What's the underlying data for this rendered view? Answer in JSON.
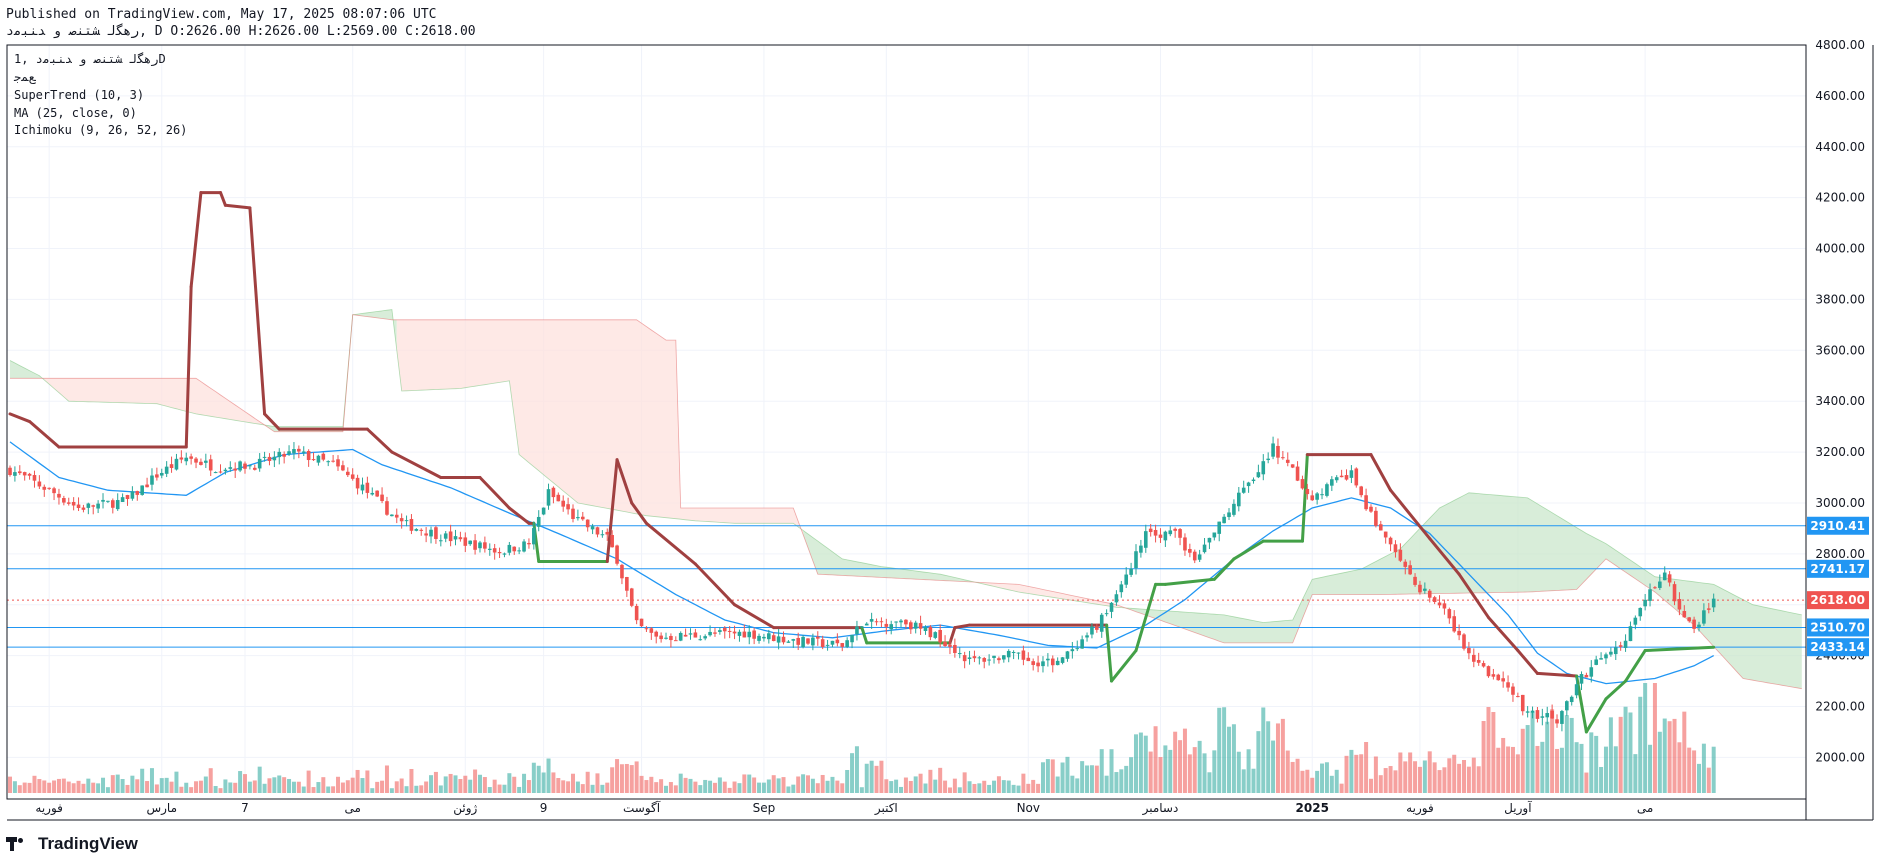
{
  "header": {
    "line1": "Published on TradingView.com, May 17, 2025 08:07:06 UTC",
    "line2": "ﺭﻫﮕﻟ ﺸﺘﻨﺻ ﻭ ﺪﻨﺒﻣﺩ, D O:2626.00 H:2626.00 L:2569.00 C:2618.00"
  },
  "legend": {
    "symbol": "ﺭﻫﮕﻟ ﺸﺘﻨﺻ ﻭ ﺪﻨﺒﻣﺩ ,1D",
    "sub": "ﻊﻤﺟ",
    "supertrend": "SuperTrend (10, 3)",
    "ma": "MA (25, close, 0)",
    "ichimoku": "Ichimoku (9, 26, 52, 26)"
  },
  "footer": {
    "brand": "TradingView"
  },
  "colors": {
    "up": "#26a69a",
    "down": "#ef5350",
    "st_up": "#43a047",
    "st_down": "#a04040",
    "ma": "#2196f3",
    "hline": "#2196f3",
    "cloud_up": "#c8e6c9",
    "cloud_down": "#fde0dc"
  },
  "chart_data": {
    "type": "candlestick",
    "y_range": [
      1860,
      4800
    ],
    "y_ticks": [
      2000,
      2200,
      2400,
      2600,
      2800,
      3000,
      3200,
      3400,
      3600,
      3800,
      4000,
      4200,
      4400,
      4600,
      4800
    ],
    "y_tick_labels": [
      "2000.00",
      "2200.00",
      "2400.00",
      "2600.00",
      "2800.00",
      "3000.00",
      "3200.00",
      "3400.00",
      "3600.00",
      "3800.00",
      "4000.00",
      "4200.00",
      "4400.00",
      "4600.00",
      "4800.00"
    ],
    "x_labels": [
      {
        "i": 8,
        "label": "ﻓﻮرﯾﻪ"
      },
      {
        "i": 31,
        "label": "ﻣﺎرس"
      },
      {
        "i": 48,
        "label": "7"
      },
      {
        "i": 70,
        "label": "ﻣﯽ"
      },
      {
        "i": 93,
        "label": "ژوﺋﻦ"
      },
      {
        "i": 109,
        "label": "9"
      },
      {
        "i": 129,
        "label": "آﮔﻮﺳﺖ"
      },
      {
        "i": 154,
        "label": "Sep"
      },
      {
        "i": 179,
        "label": "اﮐﺘﺒﺮ"
      },
      {
        "i": 208,
        "label": "Nov"
      },
      {
        "i": 235,
        "label": "دﺳﺎﻣﺒﺮ"
      },
      {
        "i": 266,
        "label": "2025"
      },
      {
        "i": 288,
        "label": "ﻓﻮرﯾﻪ"
      },
      {
        "i": 308,
        "label": "آورﯾﻞ"
      },
      {
        "i": 334,
        "label": "ﻣﯽ"
      }
    ],
    "price_levels": [
      {
        "value": 2910.41,
        "label": "2910.41"
      },
      {
        "value": 2741.17,
        "label": "2741.17"
      },
      {
        "value": 2510.7,
        "label": "2510.70"
      },
      {
        "value": 2433.14,
        "label": "2433.14"
      }
    ],
    "last_price": {
      "value": 2618.0,
      "label": "2618.00"
    },
    "close_keypoints": [
      [
        0,
        3130
      ],
      [
        8,
        3050
      ],
      [
        14,
        2980
      ],
      [
        24,
        3010
      ],
      [
        30,
        3110
      ],
      [
        36,
        3180
      ],
      [
        42,
        3140
      ],
      [
        50,
        3150
      ],
      [
        58,
        3200
      ],
      [
        66,
        3150
      ],
      [
        72,
        3060
      ],
      [
        80,
        2920
      ],
      [
        90,
        2860
      ],
      [
        100,
        2810
      ],
      [
        106,
        2840
      ],
      [
        110,
        3040
      ],
      [
        116,
        2930
      ],
      [
        122,
        2860
      ],
      [
        124,
        2780
      ],
      [
        128,
        2520
      ],
      [
        132,
        2470
      ],
      [
        140,
        2480
      ],
      [
        150,
        2490
      ],
      [
        160,
        2460
      ],
      [
        170,
        2440
      ],
      [
        174,
        2520
      ],
      [
        182,
        2540
      ],
      [
        190,
        2470
      ],
      [
        196,
        2380
      ],
      [
        204,
        2400
      ],
      [
        212,
        2370
      ],
      [
        218,
        2420
      ],
      [
        224,
        2570
      ],
      [
        232,
        2870
      ],
      [
        238,
        2890
      ],
      [
        242,
        2760
      ],
      [
        248,
        2950
      ],
      [
        254,
        3100
      ],
      [
        258,
        3220
      ],
      [
        262,
        3120
      ],
      [
        266,
        3020
      ],
      [
        270,
        3080
      ],
      [
        274,
        3110
      ],
      [
        278,
        2950
      ],
      [
        282,
        2830
      ],
      [
        286,
        2700
      ],
      [
        292,
        2600
      ],
      [
        298,
        2400
      ],
      [
        304,
        2300
      ],
      [
        310,
        2180
      ],
      [
        316,
        2150
      ],
      [
        320,
        2290
      ],
      [
        326,
        2410
      ],
      [
        330,
        2460
      ],
      [
        334,
        2620
      ],
      [
        338,
        2740
      ],
      [
        341,
        2580
      ],
      [
        344,
        2500
      ],
      [
        346,
        2560
      ],
      [
        348,
        2618
      ]
    ],
    "supertrend_keypoints": [
      [
        0,
        3350
      ],
      [
        4,
        3320
      ],
      [
        10,
        3220
      ],
      [
        36,
        3220
      ],
      [
        37,
        3850
      ],
      [
        39,
        4220
      ],
      [
        43,
        4220
      ],
      [
        44,
        4170
      ],
      [
        49,
        4160
      ],
      [
        52,
        3350
      ],
      [
        55,
        3290
      ],
      [
        73,
        3290
      ],
      [
        78,
        3200
      ],
      [
        88,
        3100
      ],
      [
        96,
        3100
      ],
      [
        102,
        2980
      ],
      [
        106,
        2920
      ],
      [
        107,
        2920
      ],
      [
        108,
        2770
      ],
      [
        122,
        2770
      ],
      [
        124,
        3170
      ],
      [
        127,
        3000
      ],
      [
        130,
        2920
      ],
      [
        140,
        2760
      ],
      [
        148,
        2600
      ],
      [
        156,
        2510
      ],
      [
        174,
        2510
      ],
      [
        175,
        2450
      ],
      [
        192,
        2450
      ],
      [
        193,
        2510
      ],
      [
        196,
        2520
      ],
      [
        224,
        2520
      ],
      [
        225,
        2300
      ],
      [
        230,
        2420
      ],
      [
        234,
        2680
      ],
      [
        236,
        2680
      ],
      [
        246,
        2700
      ],
      [
        250,
        2780
      ],
      [
        256,
        2850
      ],
      [
        264,
        2850
      ],
      [
        265,
        3190
      ],
      [
        278,
        3190
      ],
      [
        282,
        3050
      ],
      [
        290,
        2860
      ],
      [
        296,
        2720
      ],
      [
        302,
        2550
      ],
      [
        308,
        2420
      ],
      [
        312,
        2330
      ],
      [
        320,
        2320
      ],
      [
        322,
        2100
      ],
      [
        326,
        2230
      ],
      [
        330,
        2300
      ],
      [
        334,
        2420
      ],
      [
        348,
        2433
      ]
    ],
    "ma_keypoints": [
      [
        0,
        3240
      ],
      [
        10,
        3100
      ],
      [
        20,
        3050
      ],
      [
        36,
        3030
      ],
      [
        44,
        3120
      ],
      [
        56,
        3190
      ],
      [
        70,
        3210
      ],
      [
        76,
        3150
      ],
      [
        90,
        3060
      ],
      [
        102,
        2960
      ],
      [
        112,
        2880
      ],
      [
        124,
        2780
      ],
      [
        136,
        2640
      ],
      [
        146,
        2540
      ],
      [
        156,
        2490
      ],
      [
        168,
        2470
      ],
      [
        180,
        2500
      ],
      [
        190,
        2520
      ],
      [
        202,
        2480
      ],
      [
        212,
        2440
      ],
      [
        222,
        2430
      ],
      [
        232,
        2520
      ],
      [
        240,
        2620
      ],
      [
        250,
        2780
      ],
      [
        258,
        2890
      ],
      [
        266,
        2980
      ],
      [
        274,
        3020
      ],
      [
        282,
        2980
      ],
      [
        290,
        2880
      ],
      [
        298,
        2720
      ],
      [
        306,
        2560
      ],
      [
        312,
        2410
      ],
      [
        318,
        2330
      ],
      [
        326,
        2290
      ],
      [
        336,
        2310
      ],
      [
        344,
        2360
      ],
      [
        348,
        2400
      ]
    ],
    "cloud_a_keypoints": [
      [
        0,
        3560
      ],
      [
        6,
        3500
      ],
      [
        12,
        3400
      ],
      [
        30,
        3390
      ],
      [
        38,
        3350
      ],
      [
        54,
        3300
      ],
      [
        68,
        3300
      ],
      [
        70,
        3740
      ],
      [
        78,
        3760
      ],
      [
        80,
        3440
      ],
      [
        92,
        3450
      ],
      [
        102,
        3480
      ],
      [
        104,
        3190
      ],
      [
        116,
        3000
      ],
      [
        130,
        2950
      ],
      [
        140,
        2930
      ],
      [
        148,
        2920
      ],
      [
        160,
        2920
      ],
      [
        170,
        2780
      ],
      [
        178,
        2750
      ],
      [
        190,
        2720
      ],
      [
        206,
        2650
      ],
      [
        226,
        2590
      ],
      [
        248,
        2560
      ],
      [
        256,
        2530
      ],
      [
        262,
        2540
      ],
      [
        266,
        2700
      ],
      [
        276,
        2740
      ],
      [
        284,
        2820
      ],
      [
        292,
        2980
      ],
      [
        298,
        3040
      ],
      [
        310,
        3020
      ],
      [
        322,
        2880
      ],
      [
        326,
        2840
      ],
      [
        336,
        2710
      ],
      [
        348,
        2680
      ],
      [
        356,
        2600
      ],
      [
        366,
        2560
      ]
    ],
    "cloud_b_keypoints": [
      [
        0,
        3490
      ],
      [
        38,
        3490
      ],
      [
        54,
        3280
      ],
      [
        68,
        3280
      ],
      [
        70,
        3740
      ],
      [
        78,
        3720
      ],
      [
        80,
        3720
      ],
      [
        128,
        3720
      ],
      [
        134,
        3640
      ],
      [
        136,
        3640
      ],
      [
        137,
        2980
      ],
      [
        160,
        2980
      ],
      [
        165,
        2720
      ],
      [
        206,
        2680
      ],
      [
        226,
        2600
      ],
      [
        248,
        2450
      ],
      [
        256,
        2450
      ],
      [
        262,
        2450
      ],
      [
        266,
        2640
      ],
      [
        280,
        2640
      ],
      [
        310,
        2650
      ],
      [
        320,
        2660
      ],
      [
        326,
        2780
      ],
      [
        336,
        2650
      ],
      [
        344,
        2520
      ],
      [
        354,
        2310
      ],
      [
        366,
        2270
      ]
    ]
  }
}
